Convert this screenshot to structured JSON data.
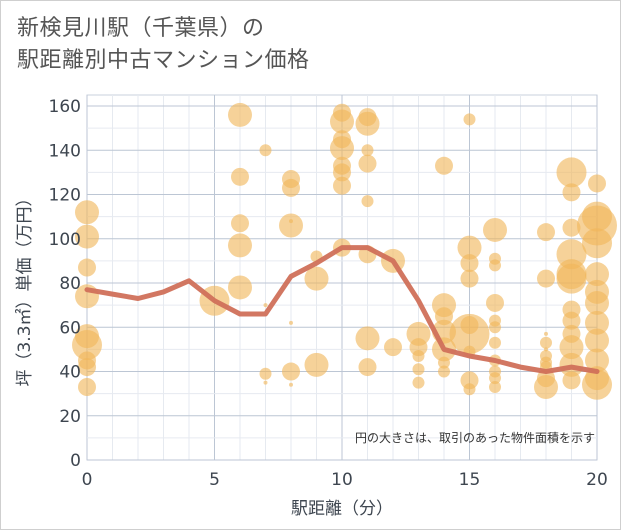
{
  "chart_data": {
    "type": "scatter",
    "title_lines": [
      "新検見川駅（千葉県）の",
      "駅距離別中古マンション価格"
    ],
    "xlabel": "駅距離（分）",
    "ylabel": "坪（3.3㎡）単価（万円）",
    "xlim": [
      0,
      20
    ],
    "ylim": [
      0,
      165
    ],
    "x_ticks": [
      0,
      5,
      10,
      15,
      20
    ],
    "y_ticks": [
      0,
      20,
      40,
      60,
      80,
      100,
      120,
      140,
      160
    ],
    "grid": true,
    "note": "円の大きさは、取引のあった物件面積を示す",
    "colors": {
      "bubble": "#f0b65a",
      "line": "#d0705a",
      "grid": "#c8d0dc"
    },
    "bubbles": [
      {
        "x": 0,
        "y": 112,
        "size": 3
      },
      {
        "x": 0,
        "y": 101,
        "size": 3
      },
      {
        "x": 0,
        "y": 87,
        "size": 2
      },
      {
        "x": 0,
        "y": 74,
        "size": 3
      },
      {
        "x": 0,
        "y": 56,
        "size": 3
      },
      {
        "x": 0,
        "y": 52,
        "size": 4
      },
      {
        "x": 0,
        "y": 45,
        "size": 2
      },
      {
        "x": 0,
        "y": 42,
        "size": 2
      },
      {
        "x": 0,
        "y": 33,
        "size": 2
      },
      {
        "x": 5,
        "y": 72,
        "size": 4
      },
      {
        "x": 6,
        "y": 156,
        "size": 3
      },
      {
        "x": 6,
        "y": 128,
        "size": 2
      },
      {
        "x": 6,
        "y": 107,
        "size": 2
      },
      {
        "x": 6,
        "y": 97,
        "size": 3
      },
      {
        "x": 6,
        "y": 78,
        "size": 3
      },
      {
        "x": 7,
        "y": 140,
        "size": 1
      },
      {
        "x": 7,
        "y": 70,
        "size": 0
      },
      {
        "x": 7,
        "y": 39,
        "size": 1
      },
      {
        "x": 7,
        "y": 35,
        "size": 0
      },
      {
        "x": 8,
        "y": 127,
        "size": 2
      },
      {
        "x": 8,
        "y": 123,
        "size": 2
      },
      {
        "x": 8,
        "y": 108,
        "size": 0
      },
      {
        "x": 8,
        "y": 106,
        "size": 3
      },
      {
        "x": 8,
        "y": 62,
        "size": 0
      },
      {
        "x": 8,
        "y": 40,
        "size": 2
      },
      {
        "x": 8,
        "y": 34,
        "size": 0
      },
      {
        "x": 9,
        "y": 92,
        "size": 1
      },
      {
        "x": 9,
        "y": 82,
        "size": 3
      },
      {
        "x": 9,
        "y": 43,
        "size": 3
      },
      {
        "x": 10,
        "y": 157,
        "size": 2
      },
      {
        "x": 10,
        "y": 153,
        "size": 3
      },
      {
        "x": 10,
        "y": 145,
        "size": 2
      },
      {
        "x": 10,
        "y": 141,
        "size": 3
      },
      {
        "x": 10,
        "y": 133,
        "size": 2
      },
      {
        "x": 10,
        "y": 130,
        "size": 2
      },
      {
        "x": 10,
        "y": 124,
        "size": 2
      },
      {
        "x": 10,
        "y": 96,
        "size": 2
      },
      {
        "x": 11,
        "y": 155,
        "size": 2
      },
      {
        "x": 11,
        "y": 152,
        "size": 3
      },
      {
        "x": 11,
        "y": 140,
        "size": 1
      },
      {
        "x": 11,
        "y": 134,
        "size": 2
      },
      {
        "x": 11,
        "y": 117,
        "size": 1
      },
      {
        "x": 11,
        "y": 93,
        "size": 2
      },
      {
        "x": 11,
        "y": 55,
        "size": 3
      },
      {
        "x": 11,
        "y": 42,
        "size": 2
      },
      {
        "x": 12,
        "y": 90,
        "size": 3
      },
      {
        "x": 12,
        "y": 51,
        "size": 2
      },
      {
        "x": 13,
        "y": 57,
        "size": 3
      },
      {
        "x": 13,
        "y": 51,
        "size": 2
      },
      {
        "x": 13,
        "y": 47,
        "size": 1
      },
      {
        "x": 13,
        "y": 41,
        "size": 1
      },
      {
        "x": 13,
        "y": 35,
        "size": 1
      },
      {
        "x": 14,
        "y": 133,
        "size": 2
      },
      {
        "x": 14,
        "y": 70,
        "size": 3
      },
      {
        "x": 14,
        "y": 65,
        "size": 2
      },
      {
        "x": 14,
        "y": 58,
        "size": 3
      },
      {
        "x": 14,
        "y": 50,
        "size": 3
      },
      {
        "x": 14,
        "y": 44,
        "size": 1
      },
      {
        "x": 14,
        "y": 40,
        "size": 1
      },
      {
        "x": 15,
        "y": 154,
        "size": 1
      },
      {
        "x": 15,
        "y": 96,
        "size": 3
      },
      {
        "x": 15,
        "y": 89,
        "size": 2
      },
      {
        "x": 15,
        "y": 82,
        "size": 2
      },
      {
        "x": 15,
        "y": 61,
        "size": 2
      },
      {
        "x": 15,
        "y": 57,
        "size": 5
      },
      {
        "x": 15,
        "y": 49,
        "size": 1
      },
      {
        "x": 15,
        "y": 36,
        "size": 2
      },
      {
        "x": 15,
        "y": 32,
        "size": 1
      },
      {
        "x": 16,
        "y": 104,
        "size": 3
      },
      {
        "x": 16,
        "y": 91,
        "size": 1
      },
      {
        "x": 16,
        "y": 88,
        "size": 1
      },
      {
        "x": 16,
        "y": 71,
        "size": 2
      },
      {
        "x": 16,
        "y": 63,
        "size": 1
      },
      {
        "x": 16,
        "y": 60,
        "size": 1
      },
      {
        "x": 16,
        "y": 53,
        "size": 1
      },
      {
        "x": 16,
        "y": 45,
        "size": 1
      },
      {
        "x": 16,
        "y": 40,
        "size": 1
      },
      {
        "x": 16,
        "y": 37,
        "size": 1
      },
      {
        "x": 16,
        "y": 33,
        "size": 1
      },
      {
        "x": 18,
        "y": 103,
        "size": 2
      },
      {
        "x": 18,
        "y": 82,
        "size": 2
      },
      {
        "x": 18,
        "y": 57,
        "size": 0
      },
      {
        "x": 18,
        "y": 53,
        "size": 1
      },
      {
        "x": 18,
        "y": 50,
        "size": 0
      },
      {
        "x": 18,
        "y": 47,
        "size": 1
      },
      {
        "x": 18,
        "y": 44,
        "size": 1
      },
      {
        "x": 18,
        "y": 42,
        "size": 1
      },
      {
        "x": 18,
        "y": 37,
        "size": 2
      },
      {
        "x": 18,
        "y": 33,
        "size": 3
      },
      {
        "x": 19,
        "y": 130,
        "size": 4
      },
      {
        "x": 19,
        "y": 121,
        "size": 2
      },
      {
        "x": 19,
        "y": 105,
        "size": 2
      },
      {
        "x": 19,
        "y": 93,
        "size": 4
      },
      {
        "x": 19,
        "y": 84,
        "size": 4
      },
      {
        "x": 19,
        "y": 82,
        "size": 4
      },
      {
        "x": 19,
        "y": 68,
        "size": 2
      },
      {
        "x": 19,
        "y": 63,
        "size": 2
      },
      {
        "x": 19,
        "y": 57,
        "size": 2
      },
      {
        "x": 19,
        "y": 51,
        "size": 3
      },
      {
        "x": 19,
        "y": 43,
        "size": 3
      },
      {
        "x": 19,
        "y": 36,
        "size": 2
      },
      {
        "x": 20,
        "y": 125,
        "size": 2
      },
      {
        "x": 20,
        "y": 110,
        "size": 4
      },
      {
        "x": 20,
        "y": 106,
        "size": 5
      },
      {
        "x": 20,
        "y": 98,
        "size": 4
      },
      {
        "x": 20,
        "y": 84,
        "size": 3
      },
      {
        "x": 20,
        "y": 76,
        "size": 3
      },
      {
        "x": 20,
        "y": 71,
        "size": 3
      },
      {
        "x": 20,
        "y": 62,
        "size": 3
      },
      {
        "x": 20,
        "y": 54,
        "size": 3
      },
      {
        "x": 20,
        "y": 45,
        "size": 3
      },
      {
        "x": 20,
        "y": 37,
        "size": 3
      },
      {
        "x": 20,
        "y": 34,
        "size": 4
      }
    ],
    "trend_line": {
      "x": [
        0,
        1,
        2,
        3,
        4,
        5,
        6,
        7,
        8,
        9,
        10,
        11,
        12,
        13,
        14,
        15,
        16,
        17,
        18,
        19,
        20
      ],
      "y": [
        77,
        75,
        73,
        76,
        81,
        72,
        66,
        66,
        83,
        89,
        96,
        96,
        90,
        72,
        50,
        47,
        45,
        42,
        40,
        42,
        40
      ]
    }
  }
}
